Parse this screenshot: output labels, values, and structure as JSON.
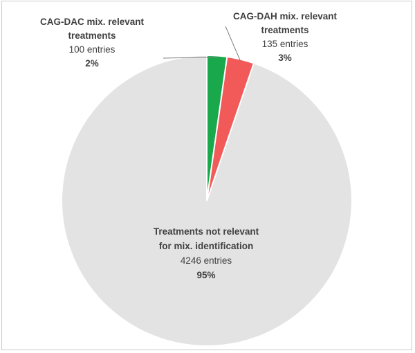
{
  "chart_data": {
    "type": "pie",
    "slices": [
      {
        "label_lines": [
          "Treatments not relevant",
          "for mix. identification"
        ],
        "entries_text": "4246 entries",
        "percent_text": "95%",
        "value": 4246,
        "color": "#e3e3e3"
      },
      {
        "label_lines": [
          "CAG-DAC mix. relevant",
          "treatments"
        ],
        "entries_text": "100 entries",
        "percent_text": "2%",
        "value": 100,
        "color": "#1aa84d"
      },
      {
        "label_lines": [
          "CAG-DAH mix. relevant",
          "treatments"
        ],
        "entries_text": "135 entries",
        "percent_text": "3%",
        "value": 135,
        "color": "#f25a5a"
      }
    ],
    "legend": "none",
    "slice_borders": "#ffffff",
    "leader_line_color": "#7f7f7f"
  }
}
